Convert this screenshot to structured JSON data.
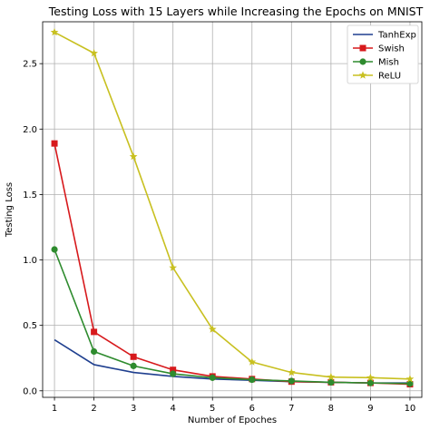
{
  "chart_data": {
    "type": "line",
    "title": "Testing Loss with 15 Layers while Increasing the Epochs on MNIST",
    "xlabel": "Number of Epoches",
    "ylabel": "Testing Loss",
    "x": [
      1,
      2,
      3,
      4,
      5,
      6,
      7,
      8,
      9,
      10
    ],
    "xlim": [
      0.7,
      10.3
    ],
    "ylim": [
      -0.05,
      2.82
    ],
    "xticks": [
      "1",
      "2",
      "3",
      "4",
      "5",
      "6",
      "7",
      "8",
      "9",
      "10"
    ],
    "yticks": [
      "0.0",
      "0.5",
      "1.0",
      "1.5",
      "2.0",
      "2.5"
    ],
    "ytick_values": [
      0.0,
      0.5,
      1.0,
      1.5,
      2.0,
      2.5
    ],
    "grid": true,
    "legend_position": "top-right",
    "series": [
      {
        "name": "TanhExp",
        "color": "#1f3f8f",
        "marker": "none",
        "values": [
          0.39,
          0.2,
          0.14,
          0.11,
          0.09,
          0.08,
          0.07,
          0.065,
          0.06,
          0.06
        ]
      },
      {
        "name": "Swish",
        "color": "#d7191c",
        "marker": "square",
        "values": [
          1.89,
          0.45,
          0.26,
          0.16,
          0.11,
          0.09,
          0.07,
          0.065,
          0.06,
          0.05
        ]
      },
      {
        "name": "Mish",
        "color": "#2e8b2e",
        "marker": "circle",
        "values": [
          1.08,
          0.3,
          0.19,
          0.13,
          0.1,
          0.085,
          0.075,
          0.065,
          0.06,
          0.055
        ]
      },
      {
        "name": "ReLU",
        "color": "#c8c020",
        "marker": "star",
        "values": [
          2.74,
          2.58,
          1.79,
          0.94,
          0.47,
          0.22,
          0.14,
          0.105,
          0.1,
          0.09
        ]
      }
    ]
  }
}
